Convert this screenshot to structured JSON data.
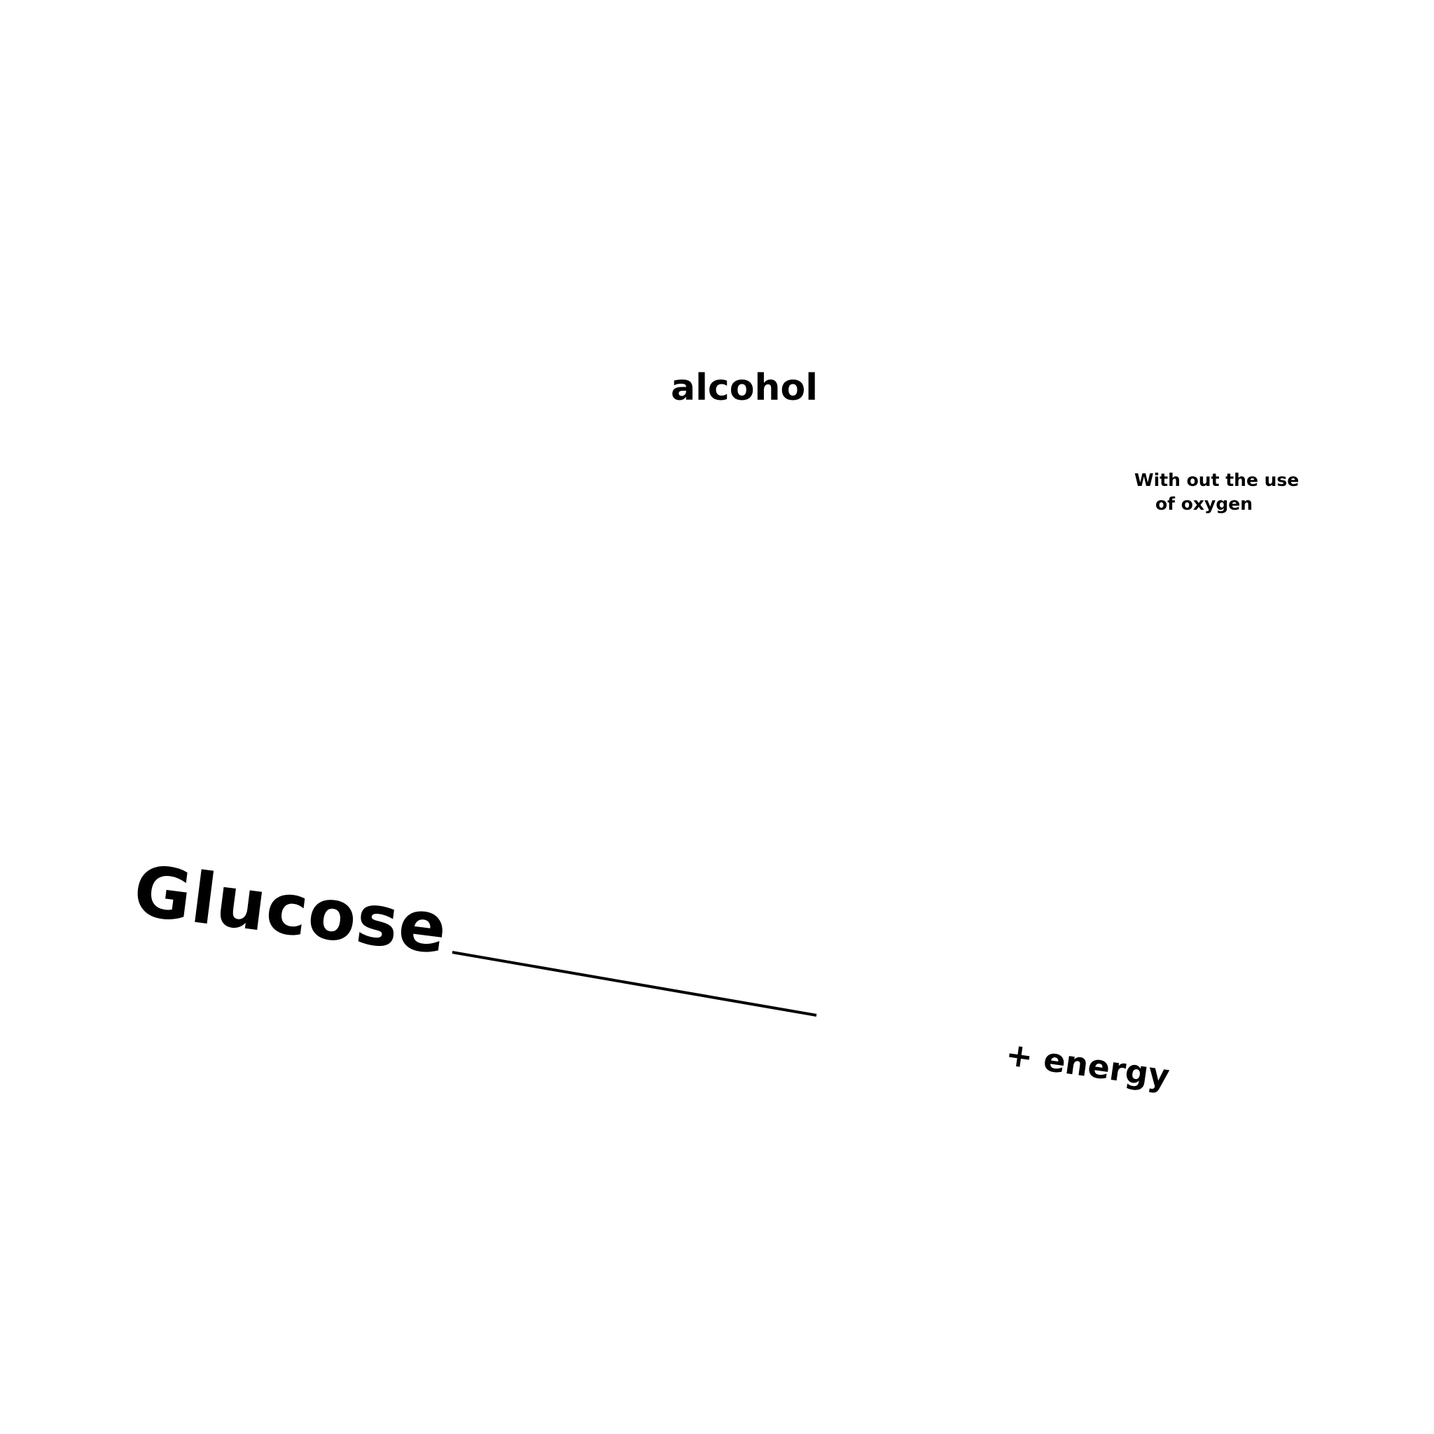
{
  "diagram": {
    "reactant": "Glucose",
    "product_top": "alcohol",
    "product_bottom": "+ energy",
    "condition_line1": "With out the use",
    "condition_line2": "of oxygen",
    "colors": {
      "text": "#000000",
      "background": "#ffffff",
      "arrow": "#000000"
    }
  }
}
